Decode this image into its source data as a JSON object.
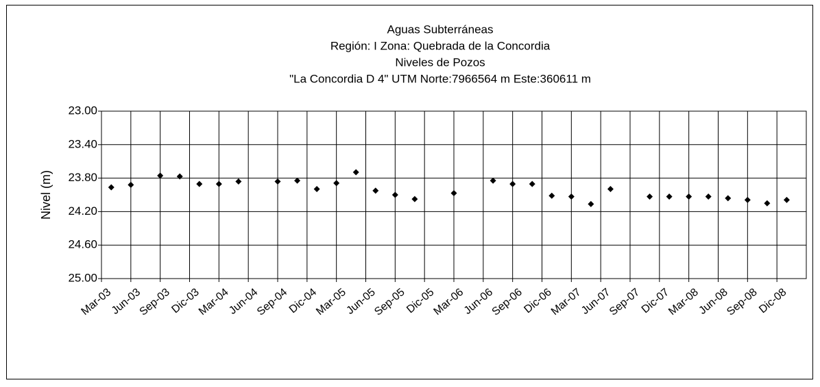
{
  "chart_data": {
    "type": "scatter",
    "title_lines": [
      "Aguas Subterráneas",
      "Región: I  Zona: Quebrada de la Concordia",
      "Niveles de Pozos",
      "\"La Concordia D 4\"  UTM Norte:7966564 m   Este:360611 m"
    ],
    "y_label": "Nivel (m)",
    "x": [
      "2003-04",
      "2003-06",
      "2003-09",
      "2003-11",
      "2004-01",
      "2004-03",
      "2004-05",
      "2004-09",
      "2004-11",
      "2005-01",
      "2005-03",
      "2005-05",
      "2005-07",
      "2005-09",
      "2005-11",
      "2006-03",
      "2006-07",
      "2006-09",
      "2006-11",
      "2007-01",
      "2007-03",
      "2007-05",
      "2007-07",
      "2007-11",
      "2008-01",
      "2008-03",
      "2008-05",
      "2008-07",
      "2008-09",
      "2008-11",
      "2009-01"
    ],
    "values": [
      23.91,
      23.88,
      23.77,
      23.78,
      23.87,
      23.87,
      23.84,
      23.84,
      23.83,
      23.93,
      23.86,
      23.73,
      23.95,
      24.0,
      24.05,
      23.98,
      23.83,
      23.87,
      23.87,
      24.01,
      24.02,
      24.11,
      23.93,
      24.02,
      24.02,
      24.02,
      24.02,
      24.04,
      24.06,
      24.1,
      24.06
    ],
    "color": "#000000",
    "xlim": [
      "2003-03",
      "2009-03"
    ],
    "xticks": [
      {
        "value": "2003-03",
        "label": "Mar-03"
      },
      {
        "value": "2003-06",
        "label": "Jun-03"
      },
      {
        "value": "2003-09",
        "label": "Sep-03"
      },
      {
        "value": "2003-12",
        "label": "Dic-03"
      },
      {
        "value": "2004-03",
        "label": "Mar-04"
      },
      {
        "value": "2004-06",
        "label": "Jun-04"
      },
      {
        "value": "2004-09",
        "label": "Sep-04"
      },
      {
        "value": "2004-12",
        "label": "Dic-04"
      },
      {
        "value": "2005-03",
        "label": "Mar-05"
      },
      {
        "value": "2005-06",
        "label": "Jun-05"
      },
      {
        "value": "2005-09",
        "label": "Sep-05"
      },
      {
        "value": "2005-12",
        "label": "Dic-05"
      },
      {
        "value": "2006-03",
        "label": "Mar-06"
      },
      {
        "value": "2006-06",
        "label": "Jun-06"
      },
      {
        "value": "2006-09",
        "label": "Sep-06"
      },
      {
        "value": "2006-12",
        "label": "Dic-06"
      },
      {
        "value": "2007-03",
        "label": "Mar-07"
      },
      {
        "value": "2007-06",
        "label": "Jun-07"
      },
      {
        "value": "2007-09",
        "label": "Sep-07"
      },
      {
        "value": "2007-12",
        "label": "Dic-07"
      },
      {
        "value": "2008-03",
        "label": "Mar-08"
      },
      {
        "value": "2008-06",
        "label": "Jun-08"
      },
      {
        "value": "2008-09",
        "label": "Sep-08"
      },
      {
        "value": "2008-12",
        "label": "Dic-08"
      }
    ],
    "ylim": [
      23,
      25
    ],
    "y_reversed": true,
    "yticks": [
      {
        "value": 23,
        "label": "23.00"
      },
      {
        "value": 23.4,
        "label": "23.40"
      },
      {
        "value": 23.8,
        "label": "23.80"
      },
      {
        "value": 24.2,
        "label": "24.20"
      },
      {
        "value": 24.6,
        "label": "24.60"
      },
      {
        "value": 25,
        "label": "25.00"
      }
    ],
    "grid": true
  }
}
